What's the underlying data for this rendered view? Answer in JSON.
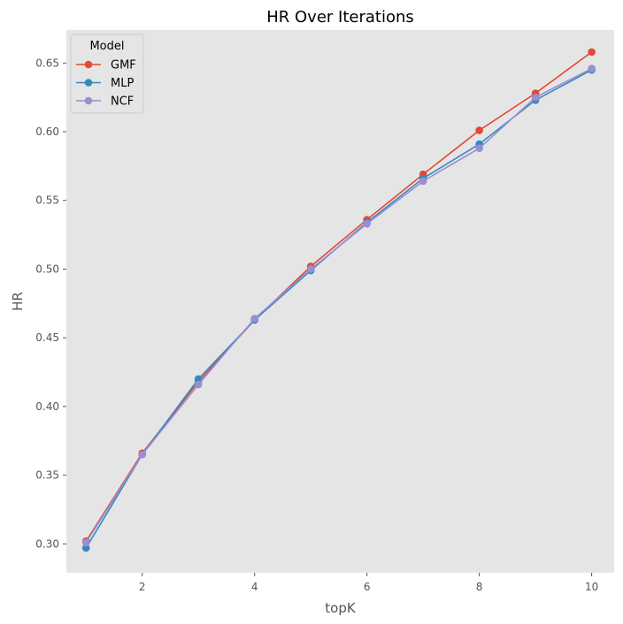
{
  "chart_data": {
    "type": "line",
    "title": "HR Over Iterations",
    "xlabel": "topK",
    "ylabel": "HR",
    "xlim": [
      0.65,
      10.4
    ],
    "ylim": [
      0.279,
      0.674
    ],
    "xticks": [
      2,
      4,
      6,
      8,
      10
    ],
    "yticks": [
      0.3,
      0.35,
      0.4,
      0.45,
      0.5,
      0.55,
      0.6,
      0.65
    ],
    "grid": false,
    "legend": {
      "title": "Model",
      "placement": "top-left"
    },
    "x": [
      1,
      2,
      3,
      4,
      5,
      6,
      7,
      8,
      9,
      10
    ],
    "series": [
      {
        "name": "GMF",
        "color": "#E24A33",
        "values": [
          0.302,
          0.366,
          0.418,
          0.463,
          0.502,
          0.536,
          0.569,
          0.601,
          0.628,
          0.658
        ]
      },
      {
        "name": "MLP",
        "color": "#348ABD",
        "values": [
          0.297,
          0.365,
          0.42,
          0.463,
          0.499,
          0.534,
          0.566,
          0.591,
          0.623,
          0.645
        ]
      },
      {
        "name": "NCF",
        "color": "#988ED5",
        "values": [
          0.301,
          0.365,
          0.416,
          0.464,
          0.5,
          0.533,
          0.564,
          0.588,
          0.625,
          0.646
        ]
      }
    ]
  }
}
